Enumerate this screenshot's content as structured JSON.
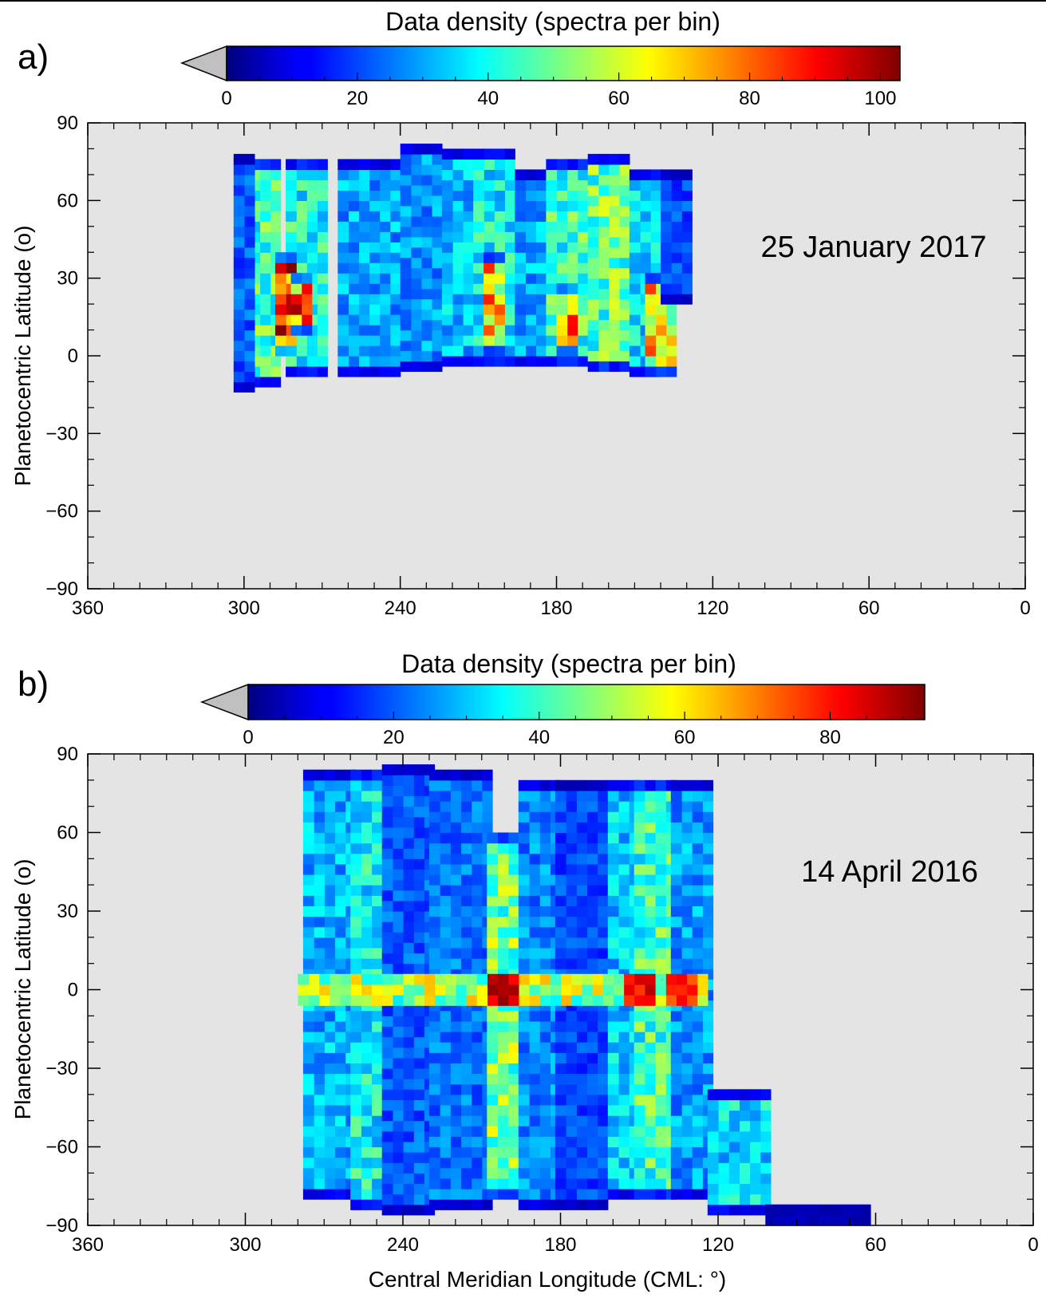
{
  "figure": {
    "panels": [
      {
        "letter": "a)",
        "date": "25 January 2017",
        "colorbar_title": "Data density (spectra per bin)",
        "colorbar_ticks": [
          "0",
          "20",
          "40",
          "60",
          "80",
          "100"
        ]
      },
      {
        "letter": "b)",
        "date": "14 April 2016",
        "colorbar_title": "Data density (spectra per bin)",
        "colorbar_ticks": [
          "0",
          "20",
          "40",
          "60",
          "80"
        ]
      }
    ],
    "ylabel": "Planetocentric Latitude (o)",
    "xlabel": "Central Meridian Longitude (CML: °)",
    "y_ticks": [
      "90",
      "60",
      "30",
      "0",
      "−30",
      "−60",
      "−90"
    ],
    "x_ticks": [
      "360",
      "300",
      "240",
      "180",
      "120",
      "60",
      "0"
    ],
    "background_color": "#e4e4e4",
    "colormap": "jet"
  },
  "chart_data": [
    {
      "type": "heatmap",
      "panel": "a)",
      "colorbar_range": [
        0,
        103
      ],
      "xlim": [
        360,
        0
      ],
      "ylim": [
        -90,
        90
      ],
      "bin_deg": 4,
      "columns": [
        {
          "cml": [
            286,
            298
          ],
          "lat": [
            -12,
            76
          ],
          "level": 45
        },
        {
          "cml": [
            268,
            284
          ],
          "lat": [
            -8,
            76
          ],
          "level": 40
        },
        {
          "cml": [
            280,
            286
          ],
          "lat": [
            0,
            40
          ],
          "level": 85
        },
        {
          "cml": [
            274,
            280
          ],
          "lat": [
            8,
            30
          ],
          "level": 78
        },
        {
          "cml": [
            296,
            304
          ],
          "lat": [
            -14,
            78
          ],
          "level": 22
        },
        {
          "cml": [
            240,
            262
          ],
          "lat": [
            -8,
            76
          ],
          "level": 30
        },
        {
          "cml": [
            224,
            240
          ],
          "lat": [
            -6,
            80
          ],
          "level": 28
        },
        {
          "cml": [
            212,
            224
          ],
          "lat": [
            -4,
            78
          ],
          "level": 32
        },
        {
          "cml": [
            196,
            212
          ],
          "lat": [
            -4,
            78
          ],
          "level": 38
        },
        {
          "cml": [
            200,
            208
          ],
          "lat": [
            0,
            40
          ],
          "level": 68
        },
        {
          "cml": [
            184,
            196
          ],
          "lat": [
            -4,
            72
          ],
          "level": 30
        },
        {
          "cml": [
            168,
            184
          ],
          "lat": [
            -4,
            76
          ],
          "level": 44
        },
        {
          "cml": [
            172,
            180
          ],
          "lat": [
            0,
            26
          ],
          "level": 72
        },
        {
          "cml": [
            152,
            168
          ],
          "lat": [
            -6,
            76
          ],
          "level": 48
        },
        {
          "cml": [
            140,
            152
          ],
          "lat": [
            -8,
            70
          ],
          "level": 36
        },
        {
          "cml": [
            134,
            144
          ],
          "lat": [
            -8,
            30
          ],
          "level": 66
        },
        {
          "cml": [
            128,
            140
          ],
          "lat": [
            20,
            72
          ],
          "level": 20
        }
      ]
    },
    {
      "type": "heatmap",
      "panel": "b)",
      "colorbar_range": [
        0,
        93
      ],
      "xlim": [
        360,
        0
      ],
      "ylim": [
        -90,
        90
      ],
      "bin_deg": 4,
      "columns": [
        {
          "cml": [
            258,
            278
          ],
          "lat": [
            -80,
            84
          ],
          "level": 28
        },
        {
          "cml": [
            248,
            258
          ],
          "lat": [
            -84,
            84
          ],
          "level": 35
        },
        {
          "cml": [
            228,
            248
          ],
          "lat": [
            -86,
            84
          ],
          "level": 20
        },
        {
          "cml": [
            206,
            228
          ],
          "lat": [
            -84,
            84
          ],
          "level": 22
        },
        {
          "cml": [
            196,
            206
          ],
          "lat": [
            -80,
            60
          ],
          "level": 46
        },
        {
          "cml": [
            180,
            196
          ],
          "lat": [
            -84,
            80
          ],
          "level": 24
        },
        {
          "cml": [
            162,
            180
          ],
          "lat": [
            -84,
            80
          ],
          "level": 18
        },
        {
          "cml": [
            150,
            162
          ],
          "lat": [
            -80,
            80
          ],
          "level": 30
        },
        {
          "cml": [
            136,
            150
          ],
          "lat": [
            -80,
            80
          ],
          "level": 40
        },
        {
          "cml": [
            122,
            136
          ],
          "lat": [
            -80,
            80
          ],
          "level": 26
        },
        {
          "cml": [
            100,
            122
          ],
          "lat": [
            -86,
            -40
          ],
          "level": 32
        },
        {
          "cml": [
            62,
            100
          ],
          "lat": [
            -90,
            -84
          ],
          "level": 14
        }
      ],
      "equatorial_band": {
        "lat": [
          -6,
          6
        ],
        "level": 60,
        "peaks": [
          {
            "cml": 200,
            "level": 92
          },
          {
            "cml": 148,
            "level": 90
          },
          {
            "cml": 132,
            "level": 84
          }
        ]
      }
    }
  ]
}
